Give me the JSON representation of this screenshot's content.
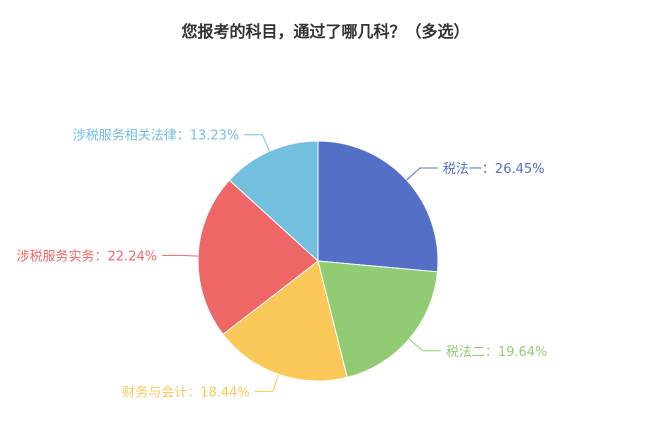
{
  "chart_data": {
    "type": "pie",
    "title": "您报考的科目，通过了哪几科？（多选）",
    "start": "top",
    "direction": "clockwise",
    "slices": [
      {
        "label": "税法一",
        "value": 26.45,
        "text": "税法一：26.45%",
        "color": "#5470c6"
      },
      {
        "label": "税法二",
        "value": 19.64,
        "text": "税法二：19.64%",
        "color": "#91cc75"
      },
      {
        "label": "财务与会计",
        "value": 18.44,
        "text": "财务与会计：18.44%",
        "color": "#fac858"
      },
      {
        "label": "涉税服务实务",
        "value": 22.24,
        "text": "涉税服务实务：22.24%",
        "color": "#ee6666"
      },
      {
        "label": "涉税服务相关法律",
        "value": 13.23,
        "text": "涉税服务相关法律：13.23%",
        "color": "#73c0de"
      }
    ]
  }
}
